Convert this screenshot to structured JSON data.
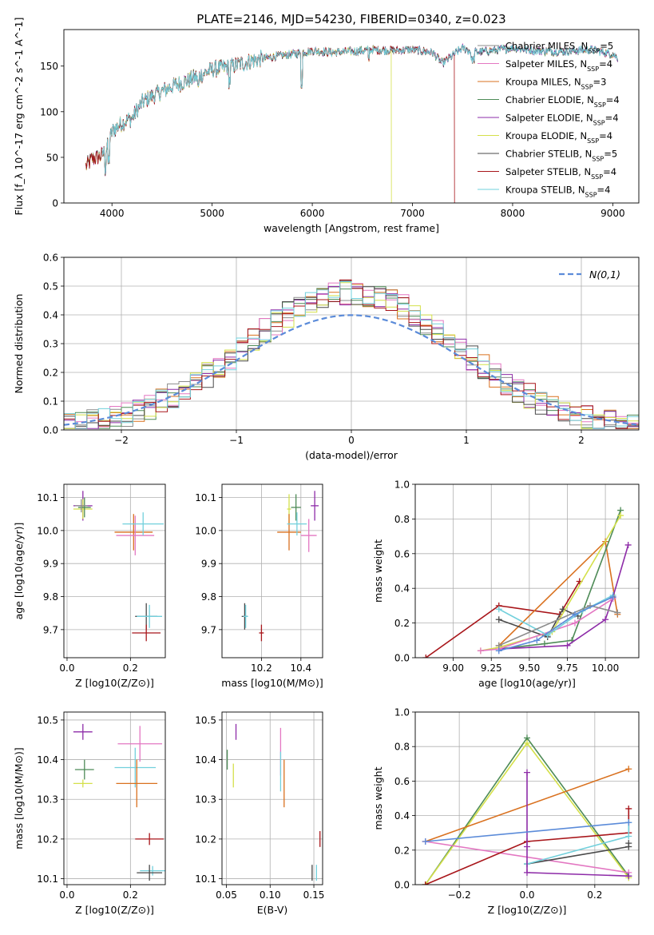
{
  "figure_title": "PLATE=2146, MJD=54230, FIBERID=0340, z=0.023",
  "models": [
    {
      "name": "Chabrier MILES",
      "nssp": "5",
      "color": "#8c8c8c"
    },
    {
      "name": "Salpeter MILES",
      "nssp": "4",
      "color": "#e377c2"
    },
    {
      "name": "Kroupa MILES",
      "nssp": "3",
      "color": "#d9711f"
    },
    {
      "name": "Chabrier ELODIE",
      "nssp": "4",
      "color": "#4e8b57"
    },
    {
      "name": "Salpeter ELODIE",
      "nssp": "4",
      "color": "#8e2ca8"
    },
    {
      "name": "Kroupa ELODIE",
      "nssp": "4",
      "color": "#d4e04a"
    },
    {
      "name": "Chabrier STELIB",
      "nssp": "5",
      "color": "#4a4a4a"
    },
    {
      "name": "Salpeter STELIB",
      "nssp": "4",
      "color": "#a8151a"
    },
    {
      "name": "Kroupa STELIB",
      "nssp": "4",
      "color": "#72d0dc"
    }
  ],
  "chart_data": [
    {
      "type": "line",
      "id": "spectrum",
      "xlabel": "wavelength [Angstrom, rest frame]",
      "ylabel": "Flux [f_λ 10^-17 erg cm^-2 s^-1 A^-1]",
      "xlim": [
        3520,
        9260
      ],
      "ylim": [
        0,
        190
      ],
      "xticks": [
        4000,
        5000,
        6000,
        7000,
        8000,
        9000
      ],
      "yticks": [
        0,
        50,
        100,
        150
      ],
      "continuum": {
        "x": [
          3740,
          3800,
          3900,
          3950,
          4000,
          4100,
          4200,
          4300,
          4400,
          4500,
          4600,
          4800,
          5000,
          5200,
          5400,
          5600,
          5800,
          6000,
          6200,
          6400,
          6600,
          6800,
          7000,
          7200,
          7300,
          7500,
          7600,
          7800,
          8000,
          8200,
          8500,
          8800,
          9000,
          9050
        ],
        "y": [
          40,
          48,
          52,
          60,
          78,
          88,
          93,
          110,
          117,
          122,
          128,
          136,
          146,
          150,
          156,
          160,
          163,
          167,
          165,
          166,
          168,
          167,
          168,
          165,
          153,
          170,
          165,
          167,
          170,
          167,
          166,
          168,
          163,
          159
        ]
      },
      "cutoffs": {
        "Kroupa ELODIE": 6790,
        "Salpeter STELIB": 7420,
        "Kroupa STELIB_start": 3900
      },
      "legend_position": "right"
    },
    {
      "type": "histogram",
      "id": "residuals",
      "xlabel": "(data-model)/error",
      "ylabel": "Normed distribution",
      "xlim": [
        -2.5,
        2.5
      ],
      "ylim": [
        0,
        0.6
      ],
      "xticks": [
        -2,
        -1,
        0,
        1,
        2
      ],
      "yticks": [
        0.0,
        0.1,
        0.2,
        0.3,
        0.4,
        0.5,
        0.6
      ],
      "bin_width": 0.1,
      "reference_label": "N(0,1)",
      "reference_color": "#5b8bd9",
      "legend_position": "top-right"
    },
    {
      "type": "errorbar",
      "id": "age-vs-Z",
      "xlabel": "Z [log10(Z/Z⊙)]",
      "ylabel": "age [log10(age/yr)]",
      "xlim": [
        -0.01,
        0.31
      ],
      "ylim": [
        9.615,
        10.14
      ],
      "xticks": [
        0.0,
        0.2
      ],
      "yticks": [
        9.7,
        9.8,
        9.9,
        10.0,
        10.1
      ],
      "points": [
        {
          "model": "Salpeter ELODIE",
          "x": 0.05,
          "y": 10.075,
          "ex": 0.03,
          "ey": 0.045
        },
        {
          "model": "Kroupa ELODIE",
          "x": 0.05,
          "y": 10.065,
          "ex": 0.03,
          "ey": 0.03
        },
        {
          "model": "Chabrier ELODIE",
          "x": 0.055,
          "y": 10.07,
          "ex": 0.02,
          "ey": 0.03
        },
        {
          "model": "Chabrier MILES",
          "x": 0.045,
          "y": 10.075,
          "ex": 0.02,
          "ey": 0.02
        },
        {
          "model": "Kroupa MILES",
          "x": 0.21,
          "y": 9.995,
          "ex": 0.06,
          "ey": 0.055
        },
        {
          "model": "Salpeter MILES",
          "x": 0.215,
          "y": 9.985,
          "ex": 0.06,
          "ey": 0.06
        },
        {
          "model": "Kroupa STELIB",
          "x": 0.24,
          "y": 10.02,
          "ex": 0.065,
          "ey": 0.035
        },
        {
          "model": "Chabrier STELIB",
          "x": 0.25,
          "y": 9.74,
          "ex": 0.035,
          "ey": 0.04
        },
        {
          "model": "Kroupa STELIB",
          "x": 0.26,
          "y": 9.74,
          "ex": 0.04,
          "ey": 0.035
        },
        {
          "model": "Salpeter STELIB",
          "x": 0.25,
          "y": 9.69,
          "ex": 0.045,
          "ey": 0.025
        }
      ]
    },
    {
      "type": "errorbar",
      "id": "age-vs-mass",
      "xlabel": "mass [log10(M/M⊙)]",
      "ylabel": "",
      "xlim": [
        10.0,
        10.51
      ],
      "ylim": [
        9.615,
        10.14
      ],
      "xticks": [
        10.2,
        10.4
      ],
      "yticks": [
        9.7,
        9.8,
        9.9,
        10.0,
        10.1
      ],
      "points": [
        {
          "model": "Salpeter ELODIE",
          "x": 10.47,
          "y": 10.075,
          "ex": 0.02,
          "ey": 0.045
        },
        {
          "model": "Chabrier ELODIE",
          "x": 10.375,
          "y": 10.07,
          "ex": 0.025,
          "ey": 0.04
        },
        {
          "model": "Kroupa ELODIE",
          "x": 10.34,
          "y": 10.065,
          "ex": 0.01,
          "ey": 0.045
        },
        {
          "model": "Kroupa MILES",
          "x": 10.34,
          "y": 9.995,
          "ex": 0.06,
          "ey": 0.055
        },
        {
          "model": "Kroupa STELIB",
          "x": 10.38,
          "y": 10.02,
          "ex": 0.05,
          "ey": 0.035
        },
        {
          "model": "Salpeter MILES",
          "x": 10.44,
          "y": 9.985,
          "ex": 0.04,
          "ey": 0.05
        },
        {
          "model": "Chabrier STELIB",
          "x": 10.115,
          "y": 9.74,
          "ex": 0.015,
          "ey": 0.04
        },
        {
          "model": "Kroupa STELIB",
          "x": 10.12,
          "y": 9.74,
          "ex": 0.012,
          "ey": 0.035
        },
        {
          "model": "Salpeter STELIB",
          "x": 10.2,
          "y": 9.69,
          "ex": 0.012,
          "ey": 0.025
        }
      ]
    },
    {
      "type": "line",
      "id": "massweight-vs-age",
      "xlabel": "age [log10(age/yr)]",
      "ylabel": "mass weight",
      "xlim": [
        8.75,
        10.22
      ],
      "ylim": [
        0.0,
        1.0
      ],
      "xticks": [
        9.0,
        9.25,
        9.5,
        9.75,
        10.0
      ],
      "yticks": [
        0.0,
        0.2,
        0.4,
        0.6,
        0.8,
        1.0
      ],
      "series": [
        {
          "model": "Salpeter STELIB",
          "x": [
            8.82,
            9.3,
            9.7,
            9.83
          ],
          "y": [
            0.0,
            0.3,
            0.25,
            0.44
          ]
        },
        {
          "model": "Kroupa MILES",
          "x": [
            9.3,
            10.0,
            10.08
          ],
          "y": [
            0.07,
            0.67,
            0.25
          ]
        },
        {
          "model": "Chabrier STELIB",
          "x": [
            9.3,
            9.62,
            9.72,
            9.82
          ],
          "y": [
            0.22,
            0.12,
            0.28,
            0.24
          ]
        },
        {
          "model": "Chabrier ELODIE",
          "x": [
            9.3,
            9.6,
            9.78,
            10.1
          ],
          "y": [
            0.05,
            0.08,
            0.1,
            0.85
          ]
        },
        {
          "model": "Kroupa ELODIE",
          "x": [
            9.18,
            9.3,
            9.65,
            10.1
          ],
          "y": [
            0.04,
            0.06,
            0.15,
            0.82
          ]
        },
        {
          "model": "Salpeter ELODIE",
          "x": [
            9.3,
            9.75,
            10.0,
            10.05,
            10.15
          ],
          "y": [
            0.05,
            0.07,
            0.22,
            0.35,
            0.65
          ]
        },
        {
          "model": "Salpeter MILES",
          "x": [
            9.18,
            9.3,
            9.8,
            10.05
          ],
          "y": [
            0.04,
            0.05,
            0.2,
            0.34
          ]
        },
        {
          "model": "Kroupa STELIB",
          "x": [
            9.3,
            9.62,
            9.85,
            10.05
          ],
          "y": [
            0.28,
            0.13,
            0.27,
            0.36
          ]
        },
        {
          "model": "Chabrier MILES",
          "x": [
            9.3,
            9.9,
            10.08
          ],
          "y": [
            0.07,
            0.3,
            0.26
          ]
        },
        {
          "model": "Kroupa STELIB blue",
          "x": [
            9.3,
            9.55,
            9.8,
            10.05
          ],
          "y": [
            0.04,
            0.1,
            0.25,
            0.35
          ],
          "color": "#5b8bd9"
        }
      ]
    },
    {
      "type": "errorbar",
      "id": "mass-vs-Z",
      "xlabel": "Z [log10(Z/Z⊙)]",
      "ylabel": "mass [log10(M/M⊙)]",
      "xlim": [
        -0.01,
        0.31
      ],
      "ylim": [
        10.085,
        10.52
      ],
      "xticks": [
        0.0,
        0.2
      ],
      "yticks": [
        10.1,
        10.2,
        10.3,
        10.4,
        10.5
      ],
      "points": [
        {
          "model": "Salpeter ELODIE",
          "x": 0.05,
          "y": 10.47,
          "ex": 0.03,
          "ey": 0.02
        },
        {
          "model": "Chabrier ELODIE",
          "x": 0.055,
          "y": 10.375,
          "ex": 0.03,
          "ey": 0.025
        },
        {
          "model": "Kroupa ELODIE",
          "x": 0.05,
          "y": 10.34,
          "ex": 0.03,
          "ey": 0.01
        },
        {
          "model": "Salpeter MILES",
          "x": 0.23,
          "y": 10.44,
          "ex": 0.07,
          "ey": 0.045
        },
        {
          "model": "Kroupa STELIB",
          "x": 0.215,
          "y": 10.38,
          "ex": 0.065,
          "ey": 0.05
        },
        {
          "model": "Kroupa MILES",
          "x": 0.22,
          "y": 10.34,
          "ex": 0.065,
          "ey": 0.06
        },
        {
          "model": "Salpeter STELIB",
          "x": 0.26,
          "y": 10.2,
          "ex": 0.045,
          "ey": 0.015
        },
        {
          "model": "Kroupa STELIB",
          "x": 0.27,
          "y": 10.12,
          "ex": 0.04,
          "ey": 0.012
        },
        {
          "model": "Chabrier STELIB",
          "x": 0.26,
          "y": 10.115,
          "ex": 0.04,
          "ey": 0.02
        }
      ]
    },
    {
      "type": "errorbar",
      "id": "mass-vs-ebv",
      "xlabel": "E(B-V)",
      "ylabel": "",
      "xlim": [
        0.045,
        0.16
      ],
      "ylim": [
        10.085,
        10.52
      ],
      "xticks": [
        0.05,
        0.1,
        0.15
      ],
      "yticks": [
        10.1,
        10.2,
        10.3,
        10.4,
        10.5
      ],
      "points": [
        {
          "model": "Salpeter ELODIE",
          "x": 0.061,
          "y": 10.47,
          "ex": 0.0,
          "ey": 0.02
        },
        {
          "model": "Chabrier ELODIE",
          "x": 0.051,
          "y": 10.4,
          "ex": 0.0,
          "ey": 0.025
        },
        {
          "model": "Kroupa ELODIE",
          "x": 0.058,
          "y": 10.36,
          "ex": 0.0,
          "ey": 0.03
        },
        {
          "model": "Salpeter MILES",
          "x": 0.112,
          "y": 10.42,
          "ex": 0.0,
          "ey": 0.06
        },
        {
          "model": "Kroupa STELIB",
          "x": 0.112,
          "y": 10.37,
          "ex": 0.0,
          "ey": 0.05
        },
        {
          "model": "Kroupa MILES",
          "x": 0.116,
          "y": 10.34,
          "ex": 0.0,
          "ey": 0.06
        },
        {
          "model": "Salpeter STELIB",
          "x": 0.157,
          "y": 10.2,
          "ex": 0.0,
          "ey": 0.02
        },
        {
          "model": "Chabrier STELIB",
          "x": 0.148,
          "y": 10.115,
          "ex": 0.0,
          "ey": 0.02
        },
        {
          "model": "Kroupa STELIB",
          "x": 0.153,
          "y": 10.115,
          "ex": 0.0,
          "ey": 0.02
        }
      ]
    },
    {
      "type": "line",
      "id": "massweight-vs-Z",
      "xlabel": "Z [log10(Z/Z⊙)]",
      "ylabel": "mass weight",
      "xlim": [
        -0.33,
        0.33
      ],
      "ylim": [
        0.0,
        1.0
      ],
      "xticks": [
        -0.2,
        0.0,
        0.2
      ],
      "yticks": [
        0.0,
        0.2,
        0.4,
        0.6,
        0.8,
        1.0
      ],
      "series": [
        {
          "model": "Chabrier ELODIE",
          "x": [
            -0.3,
            0.0,
            0.3
          ],
          "y": [
            0.0,
            0.85,
            0.05
          ]
        },
        {
          "model": "Kroupa ELODIE",
          "x": [
            -0.3,
            0.0,
            0.3
          ],
          "y": [
            0.0,
            0.82,
            0.04
          ]
        },
        {
          "model": "Kroupa MILES",
          "x": [
            -0.3,
            0.3
          ],
          "y": [
            0.25,
            0.67
          ]
        },
        {
          "model": "Salpeter MILES",
          "x": [
            -0.3,
            0.3
          ],
          "y": [
            0.25,
            0.07
          ]
        },
        {
          "model": "Salpeter STELIB",
          "x": [
            -0.3,
            0.0,
            0.3,
            0.3
          ],
          "y": [
            0.0,
            0.25,
            0.3,
            0.44
          ]
        },
        {
          "model": "Chabrier STELIB",
          "x": [
            0.0,
            0.3,
            0.3
          ],
          "y": [
            0.12,
            0.22,
            0.24
          ]
        },
        {
          "model": "Kroupa STELIB",
          "x": [
            0.0,
            0.3,
            0.3
          ],
          "y": [
            0.12,
            0.28,
            0.36
          ]
        },
        {
          "model": "Salpeter ELODIE",
          "x": [
            0.0,
            0.0,
            0.0,
            0.3
          ],
          "y": [
            0.65,
            0.22,
            0.07,
            0.05
          ]
        },
        {
          "model": "Kroupa STELIB blue",
          "x": [
            -0.3,
            0.3
          ],
          "y": [
            0.25,
            0.36
          ],
          "color": "#5b8bd9"
        }
      ]
    }
  ]
}
